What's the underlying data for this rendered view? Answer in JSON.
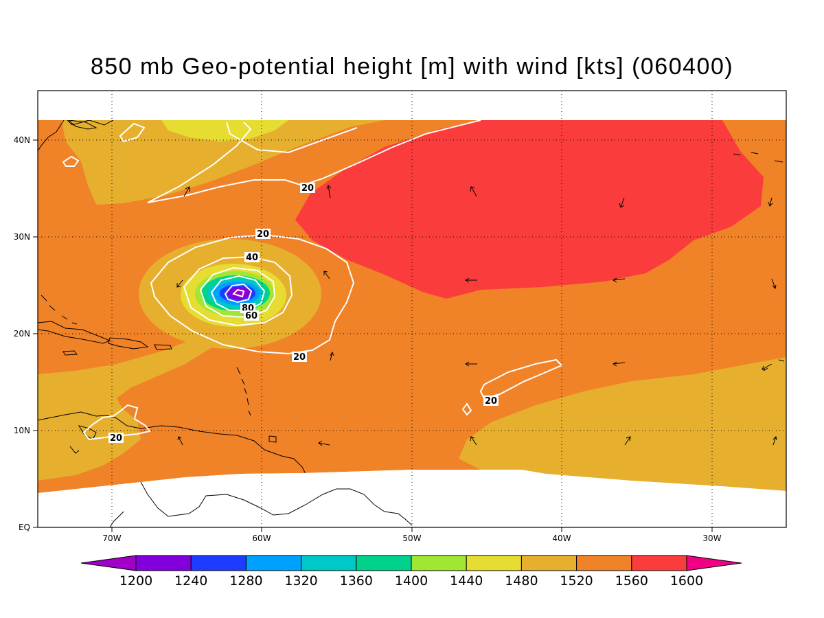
{
  "title": "850 mb Geo-potential height [m] with wind [kts] (060400)",
  "axes": {
    "x_ticks": [
      "70W",
      "60W",
      "50W",
      "40W",
      "30W"
    ],
    "y_ticks": [
      "EQ",
      "10N",
      "20N",
      "30N",
      "40N"
    ]
  },
  "colorbar": {
    "labels": [
      "1200",
      "1240",
      "1280",
      "1320",
      "1360",
      "1400",
      "1440",
      "1480",
      "1520",
      "1560",
      "1600"
    ],
    "colors": [
      "#a000c8",
      "#8200dc",
      "#1e3cff",
      "#00a0ff",
      "#00c8c8",
      "#00d28c",
      "#a0e632",
      "#e6dc32",
      "#e6af2d",
      "#f08228",
      "#fa3c3c",
      "#f00082"
    ]
  },
  "wind_contour_labels": [
    "20",
    "20",
    "40",
    "80",
    "60",
    "20",
    "20",
    "20"
  ],
  "fill_colors": {
    "c1480": "#e6dc32",
    "c1520": "#e6af2d",
    "c1560": "#f08228",
    "c1600": "#fa3c3c",
    "land_line": "#000000",
    "wind_contour": "#ffffff"
  }
}
